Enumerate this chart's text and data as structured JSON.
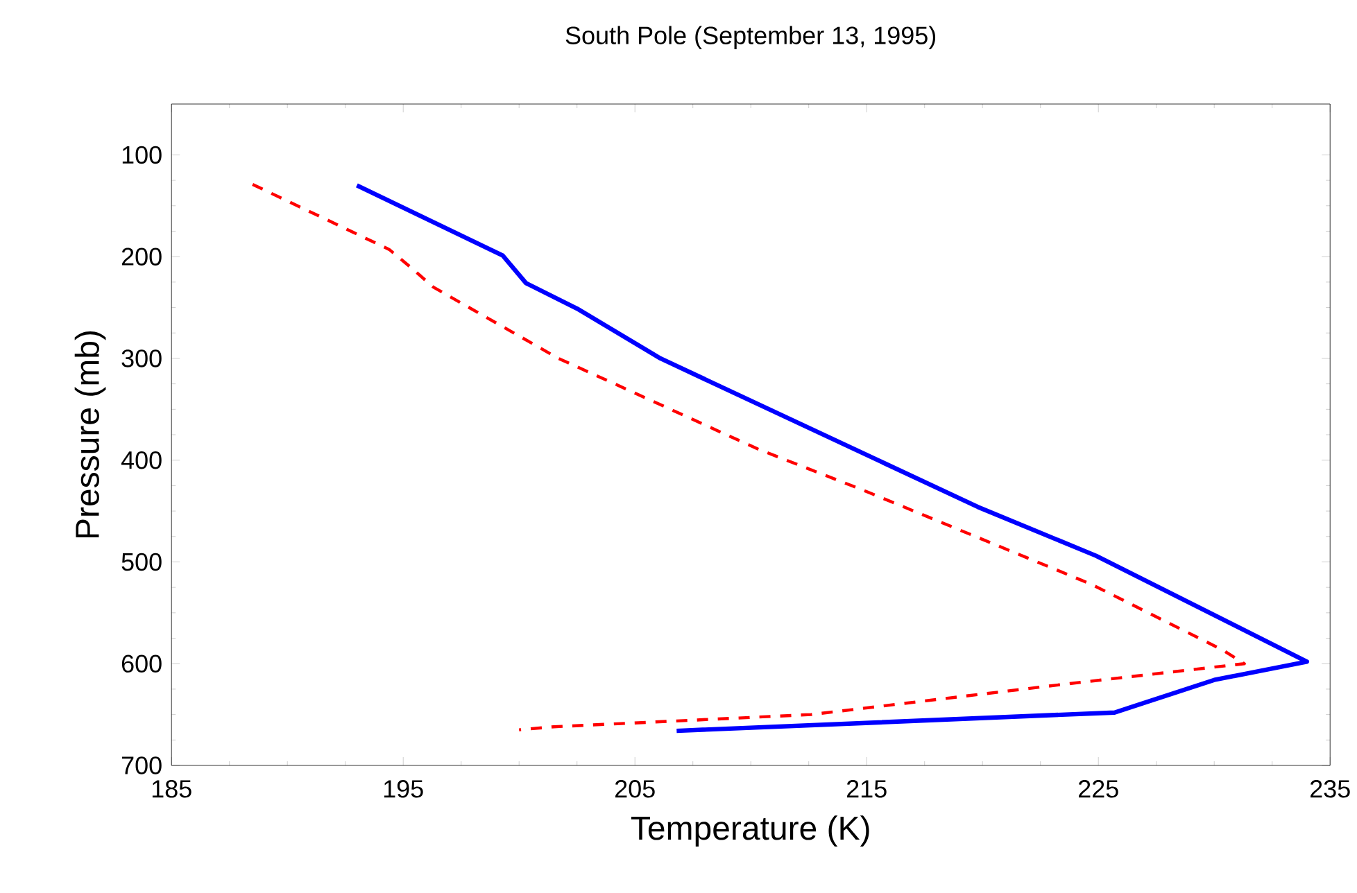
{
  "chart_data": {
    "type": "line",
    "title": "South Pole (September 13, 1995)",
    "xlabel": "Temperature (K)",
    "ylabel": "Pressure (mb)",
    "xlim": [
      185,
      235
    ],
    "xticks": [
      185,
      195,
      205,
      215,
      225,
      235
    ],
    "ylim": [
      700,
      50
    ],
    "yticks": [
      100,
      200,
      300,
      400,
      500,
      600,
      700
    ],
    "grid": false,
    "marker": "none",
    "series": [
      {
        "color": "#0000ff",
        "line_style": "solid",
        "x": [
          193,
          199.3,
          200.3,
          202.5,
          206.1,
          219.8,
          224.9,
          234.0,
          230.0,
          225.7,
          206.8
        ],
        "values": [
          130,
          199,
          226,
          251,
          300,
          446,
          494,
          598,
          616,
          648,
          666
        ]
      },
      {
        "color": "#ff0000",
        "line_style": "dashed",
        "x": [
          188.5,
          194.4,
          195.4,
          196.3,
          201.7,
          204.8,
          210.3,
          214.8,
          224.7,
          230.4,
          231.3,
          223.6,
          212.6,
          201.5,
          200.0
        ],
        "values": [
          129,
          193,
          212,
          230,
          300,
          332,
          389,
          429,
          522,
          587,
          600,
          620,
          650,
          662,
          665
        ]
      }
    ]
  }
}
